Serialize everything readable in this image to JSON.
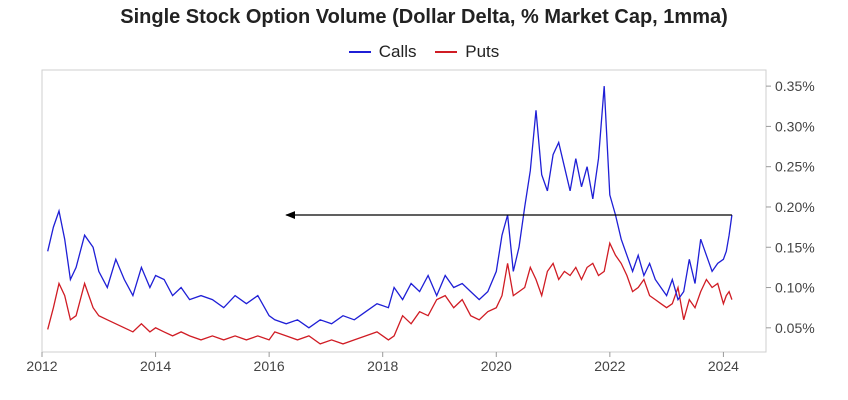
{
  "chart_data": {
    "type": "line",
    "title": "Single Stock Option Volume (Dollar Delta, % Market Cap, 1mma)",
    "xlabel": "",
    "ylabel": "",
    "xlim": [
      2012,
      2024.75
    ],
    "ylim": [
      0.02,
      0.37
    ],
    "x_ticks": [
      2012,
      2014,
      2016,
      2018,
      2020,
      2022,
      2024
    ],
    "x_tick_labels": [
      "2012",
      "2014",
      "2016",
      "2018",
      "2020",
      "2022",
      "2024"
    ],
    "y_ticks": [
      0.05,
      0.1,
      0.15,
      0.2,
      0.25,
      0.3,
      0.35
    ],
    "y_tick_labels": [
      "0.05%",
      "0.10%",
      "0.15%",
      "0.20%",
      "0.25%",
      "0.30%",
      "0.35%"
    ],
    "y_axis_side": "right",
    "grid": false,
    "legend_position": "top-center",
    "series": [
      {
        "name": "Calls",
        "color": "#1f1fd6",
        "x": [
          2012.1,
          2012.2,
          2012.3,
          2012.4,
          2012.5,
          2012.6,
          2012.75,
          2012.9,
          2013.0,
          2013.15,
          2013.3,
          2013.45,
          2013.6,
          2013.75,
          2013.9,
          2014.0,
          2014.15,
          2014.3,
          2014.45,
          2014.6,
          2014.8,
          2015.0,
          2015.2,
          2015.4,
          2015.6,
          2015.8,
          2016.0,
          2016.1,
          2016.3,
          2016.5,
          2016.7,
          2016.9,
          2017.1,
          2017.3,
          2017.5,
          2017.7,
          2017.9,
          2018.1,
          2018.2,
          2018.35,
          2018.5,
          2018.65,
          2018.8,
          2018.95,
          2019.1,
          2019.25,
          2019.4,
          2019.55,
          2019.7,
          2019.85,
          2020.0,
          2020.1,
          2020.2,
          2020.3,
          2020.4,
          2020.5,
          2020.6,
          2020.7,
          2020.8,
          2020.9,
          2021.0,
          2021.1,
          2021.2,
          2021.3,
          2021.4,
          2021.5,
          2021.6,
          2021.7,
          2021.8,
          2021.9,
          2022.0,
          2022.1,
          2022.2,
          2022.3,
          2022.4,
          2022.5,
          2022.6,
          2022.7,
          2022.8,
          2022.9,
          2023.0,
          2023.1,
          2023.2,
          2023.3,
          2023.4,
          2023.5,
          2023.6,
          2023.7,
          2023.8,
          2023.9,
          2024.0,
          2024.05,
          2024.1,
          2024.15
        ],
        "values": [
          0.145,
          0.175,
          0.195,
          0.16,
          0.11,
          0.125,
          0.165,
          0.15,
          0.12,
          0.1,
          0.135,
          0.11,
          0.09,
          0.125,
          0.1,
          0.115,
          0.11,
          0.09,
          0.1,
          0.085,
          0.09,
          0.085,
          0.075,
          0.09,
          0.08,
          0.09,
          0.065,
          0.06,
          0.055,
          0.06,
          0.05,
          0.06,
          0.055,
          0.065,
          0.06,
          0.07,
          0.08,
          0.075,
          0.1,
          0.085,
          0.105,
          0.095,
          0.115,
          0.09,
          0.115,
          0.1,
          0.105,
          0.095,
          0.085,
          0.095,
          0.12,
          0.165,
          0.19,
          0.12,
          0.15,
          0.2,
          0.245,
          0.32,
          0.24,
          0.22,
          0.265,
          0.28,
          0.25,
          0.22,
          0.26,
          0.225,
          0.25,
          0.21,
          0.26,
          0.35,
          0.215,
          0.19,
          0.16,
          0.14,
          0.12,
          0.14,
          0.115,
          0.13,
          0.11,
          0.1,
          0.09,
          0.11,
          0.085,
          0.095,
          0.135,
          0.105,
          0.16,
          0.14,
          0.12,
          0.13,
          0.135,
          0.145,
          0.165,
          0.19
        ]
      },
      {
        "name": "Puts",
        "color": "#d01c24",
        "x": [
          2012.1,
          2012.2,
          2012.3,
          2012.4,
          2012.5,
          2012.6,
          2012.75,
          2012.9,
          2013.0,
          2013.15,
          2013.3,
          2013.45,
          2013.6,
          2013.75,
          2013.9,
          2014.0,
          2014.15,
          2014.3,
          2014.45,
          2014.6,
          2014.8,
          2015.0,
          2015.2,
          2015.4,
          2015.6,
          2015.8,
          2016.0,
          2016.1,
          2016.3,
          2016.5,
          2016.7,
          2016.9,
          2017.1,
          2017.3,
          2017.5,
          2017.7,
          2017.9,
          2018.1,
          2018.2,
          2018.35,
          2018.5,
          2018.65,
          2018.8,
          2018.95,
          2019.1,
          2019.25,
          2019.4,
          2019.55,
          2019.7,
          2019.85,
          2020.0,
          2020.1,
          2020.2,
          2020.3,
          2020.4,
          2020.5,
          2020.6,
          2020.7,
          2020.8,
          2020.9,
          2021.0,
          2021.1,
          2021.2,
          2021.3,
          2021.4,
          2021.5,
          2021.6,
          2021.7,
          2021.8,
          2021.9,
          2022.0,
          2022.1,
          2022.2,
          2022.3,
          2022.4,
          2022.5,
          2022.6,
          2022.7,
          2022.8,
          2022.9,
          2023.0,
          2023.1,
          2023.2,
          2023.3,
          2023.4,
          2023.5,
          2023.6,
          2023.7,
          2023.8,
          2023.9,
          2024.0,
          2024.05,
          2024.1,
          2024.15
        ],
        "values": [
          0.048,
          0.075,
          0.105,
          0.09,
          0.06,
          0.065,
          0.105,
          0.075,
          0.065,
          0.06,
          0.055,
          0.05,
          0.045,
          0.055,
          0.045,
          0.05,
          0.045,
          0.04,
          0.045,
          0.04,
          0.035,
          0.04,
          0.035,
          0.04,
          0.035,
          0.04,
          0.035,
          0.045,
          0.04,
          0.035,
          0.04,
          0.03,
          0.035,
          0.03,
          0.035,
          0.04,
          0.045,
          0.035,
          0.04,
          0.065,
          0.055,
          0.07,
          0.065,
          0.085,
          0.09,
          0.075,
          0.085,
          0.065,
          0.06,
          0.07,
          0.075,
          0.09,
          0.13,
          0.09,
          0.095,
          0.1,
          0.125,
          0.11,
          0.09,
          0.12,
          0.13,
          0.11,
          0.12,
          0.115,
          0.125,
          0.11,
          0.125,
          0.13,
          0.115,
          0.12,
          0.155,
          0.14,
          0.13,
          0.115,
          0.095,
          0.1,
          0.11,
          0.09,
          0.085,
          0.08,
          0.075,
          0.08,
          0.1,
          0.06,
          0.085,
          0.075,
          0.095,
          0.11,
          0.1,
          0.105,
          0.08,
          0.09,
          0.095,
          0.085
        ]
      }
    ],
    "annotations": [
      {
        "type": "arrow",
        "from": [
          2024.15,
          0.19
        ],
        "to": [
          2016.3,
          0.19
        ]
      }
    ]
  }
}
